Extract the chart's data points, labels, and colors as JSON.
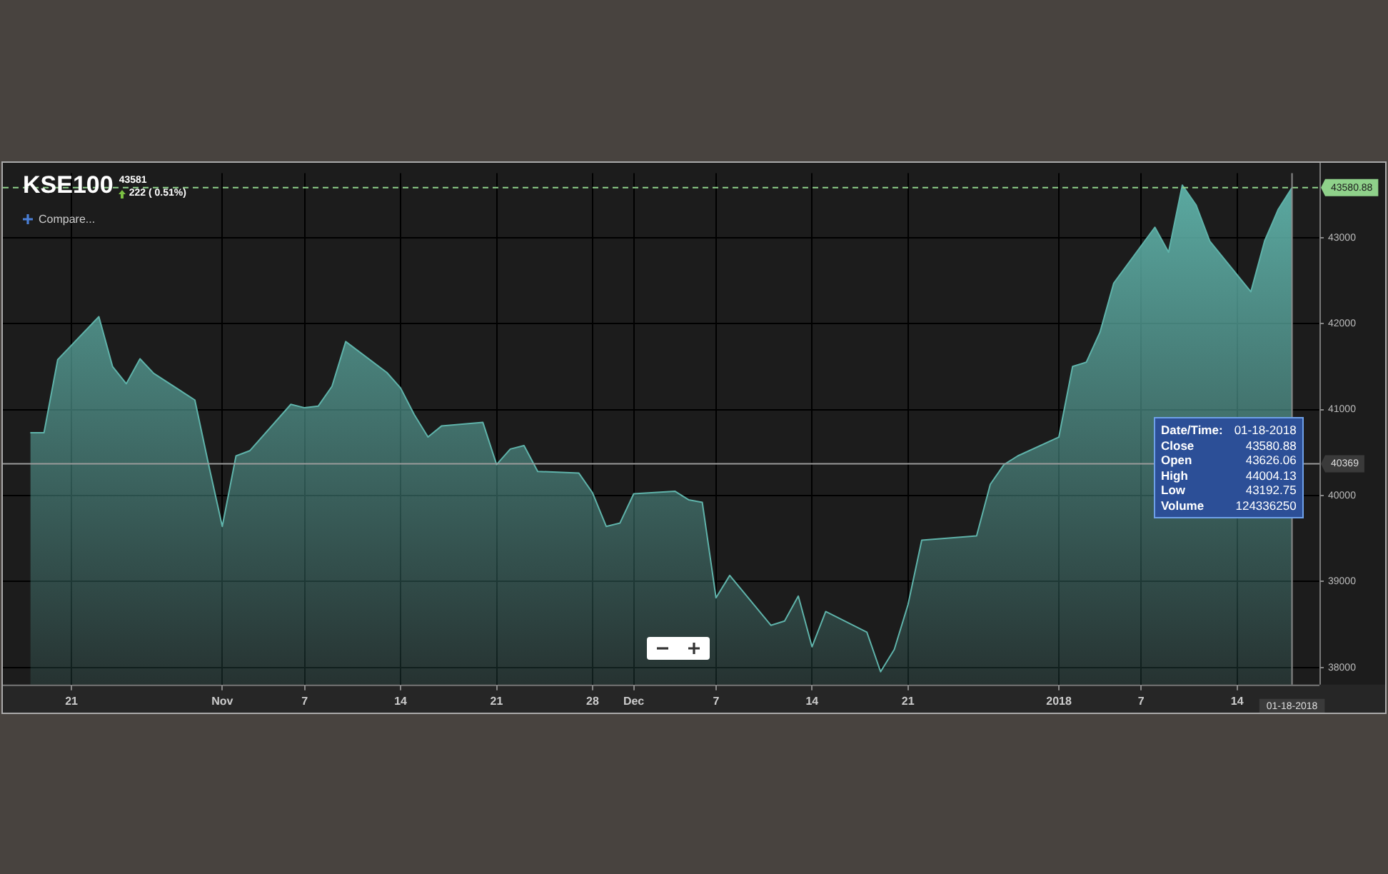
{
  "chart_data": {
    "type": "area",
    "title": "KSE100",
    "subtitle": "43581",
    "annotations": [
      "222 ( 0.51%)",
      "Compare...",
      "Date/Time:",
      "01-18-2018",
      "Close",
      "43580.88",
      "Open",
      "43626.06",
      "High",
      "44004.13",
      "Low",
      "43192.75",
      "Volume",
      "124336250"
    ],
    "x": [
      "2017-10-18",
      "2017-10-19",
      "2017-10-20",
      "2017-10-23",
      "2017-10-24",
      "2017-10-25",
      "2017-10-26",
      "2017-10-27",
      "2017-10-30",
      "2017-10-31",
      "2017-11-01",
      "2017-11-02",
      "2017-11-03",
      "2017-11-06",
      "2017-11-07",
      "2017-11-08",
      "2017-11-09",
      "2017-11-10",
      "2017-11-13",
      "2017-11-14",
      "2017-11-15",
      "2017-11-16",
      "2017-11-17",
      "2017-11-20",
      "2017-11-21",
      "2017-11-22",
      "2017-11-23",
      "2017-11-24",
      "2017-11-27",
      "2017-11-28",
      "2017-11-29",
      "2017-11-30",
      "2017-12-01",
      "2017-12-04",
      "2017-12-05",
      "2017-12-06",
      "2017-12-07",
      "2017-12-08",
      "2017-12-11",
      "2017-12-12",
      "2017-12-13",
      "2017-12-14",
      "2017-12-15",
      "2017-12-18",
      "2017-12-19",
      "2017-12-20",
      "2017-12-21",
      "2017-12-22",
      "2017-12-26",
      "2017-12-27",
      "2017-12-28",
      "2017-12-29",
      "2018-01-01",
      "2018-01-02",
      "2018-01-03",
      "2018-01-04",
      "2018-01-05",
      "2018-01-08",
      "2018-01-09",
      "2018-01-10",
      "2018-01-11",
      "2018-01-12",
      "2018-01-15",
      "2018-01-16",
      "2018-01-17",
      "2018-01-18"
    ],
    "series": [
      {
        "color": "#5fb3aa",
        "values": [
          40730,
          40730,
          41580,
          42080,
          41500,
          41300,
          41590,
          41420,
          41110,
          40360,
          39640,
          40460,
          40520,
          41060,
          41020,
          41040,
          41270,
          41790,
          41430,
          41250,
          40940,
          40680,
          40810,
          40850,
          40360,
          40540,
          40580,
          40280,
          40260,
          40030,
          39640,
          39680,
          40020,
          40050,
          39950,
          39920,
          38810,
          39070,
          38490,
          38540,
          38830,
          38240,
          38650,
          38410,
          37950,
          38210,
          38730,
          39480,
          39530,
          40130,
          40360,
          40460,
          40680,
          41500,
          41550,
          41900,
          42470,
          43120,
          42830,
          43610,
          43380,
          42960,
          42370,
          42960,
          43330,
          43580
        ]
      }
    ],
    "xlim": [
      "2017-10-16",
      "2018-01-20"
    ],
    "xticks": [
      {
        "value": "2017-10-21",
        "label": "21"
      },
      {
        "value": "2017-11-01",
        "label": "Nov"
      },
      {
        "value": "2017-11-07",
        "label": "7"
      },
      {
        "value": "2017-11-14",
        "label": "14"
      },
      {
        "value": "2017-11-21",
        "label": "21"
      },
      {
        "value": "2017-11-28",
        "label": "28"
      },
      {
        "value": "2017-12-01",
        "label": "Dec"
      },
      {
        "value": "2017-12-07",
        "label": "7"
      },
      {
        "value": "2017-12-14",
        "label": "14"
      },
      {
        "value": "2017-12-21",
        "label": "21"
      },
      {
        "value": "2018-01-01",
        "label": "2018"
      },
      {
        "value": "2018-01-07",
        "label": "7"
      },
      {
        "value": "2018-01-14",
        "label": "14"
      }
    ],
    "ylim": [
      37800,
      43750
    ],
    "yticks": [
      38000,
      39000,
      40000,
      41000,
      42000,
      43000
    ],
    "grid": true,
    "ref_lines": [
      {
        "axis": "y",
        "value": 43580.88,
        "label": "43580.88",
        "line_style": "dashed",
        "color": "#8fd18a"
      },
      {
        "axis": "y",
        "value": 40369,
        "label": "40369",
        "line_style": "solid",
        "color": "#9a9a9a"
      },
      {
        "axis": "x",
        "value": "2018-01-18",
        "label": "01-18-2018",
        "line_style": "solid",
        "color": "#8a8a8a"
      }
    ]
  }
}
